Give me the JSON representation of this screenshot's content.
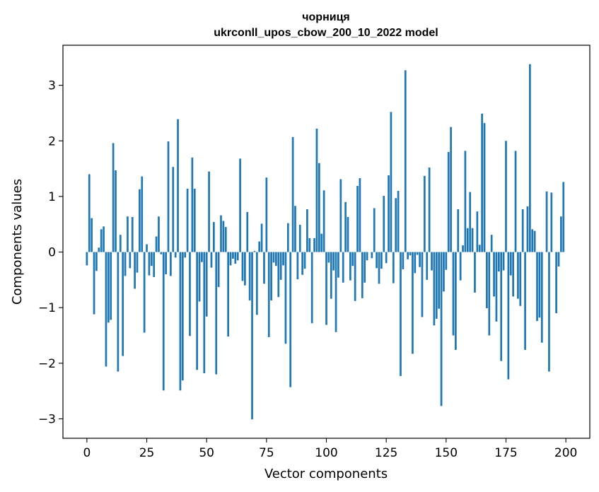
{
  "chart_data": {
    "type": "bar",
    "title_line1": "чорниця",
    "title_line2": "ukrconll_upos_cbow_200_10_2022 model",
    "xlabel": "Vector components",
    "ylabel": "Components values",
    "xlim": [
      -10,
      210
    ],
    "ylim": [
      -3.35,
      3.72
    ],
    "xticks": [
      0,
      25,
      50,
      75,
      100,
      125,
      150,
      175,
      200
    ],
    "yticks": [
      -3,
      -2,
      -1,
      0,
      1,
      2,
      3
    ],
    "ytick_labels": [
      "−3",
      "−2",
      "−1",
      "0",
      "1",
      "2",
      "3"
    ],
    "bar_color": "#1f77b4",
    "grid": false,
    "legend": "none",
    "values": [
      -0.24,
      1.4,
      0.61,
      -1.12,
      -0.34,
      0.08,
      0.41,
      0.46,
      -2.06,
      -1.27,
      -1.22,
      1.96,
      1.47,
      -2.15,
      0.31,
      -1.87,
      -0.43,
      0.64,
      -0.29,
      0.63,
      -0.66,
      -0.37,
      1.13,
      1.36,
      -1.45,
      0.14,
      -0.42,
      -0.25,
      -0.45,
      0.28,
      0.64,
      -0.04,
      -2.49,
      -0.4,
      1.99,
      -0.43,
      1.53,
      -0.1,
      2.39,
      -2.49,
      -2.31,
      -0.1,
      1.14,
      -1.51,
      1.7,
      1.14,
      -2.12,
      -0.89,
      -0.18,
      -2.18,
      -1.16,
      1.45,
      -0.28,
      0.54,
      -2.2,
      -0.63,
      0.66,
      0.56,
      0.45,
      -1.52,
      -0.24,
      -0.12,
      -0.21,
      -0.15,
      1.68,
      -0.52,
      -0.6,
      0.72,
      -0.87,
      -3.01,
      0.02,
      -1.13,
      0.19,
      0.51,
      -0.57,
      1.34,
      -1.53,
      -0.87,
      -0.19,
      -0.25,
      -0.81,
      -0.5,
      -0.24,
      -1.65,
      0.52,
      -2.43,
      2.07,
      0.83,
      -0.49,
      0.49,
      -0.41,
      -0.3,
      0.77,
      0.25,
      -1.28,
      0.25,
      2.22,
      1.6,
      0.33,
      1.11,
      -1.31,
      -0.19,
      -0.84,
      -0.33,
      -1.44,
      -0.46,
      1.31,
      -0.55,
      0.9,
      0.63,
      -0.51,
      -0.25,
      -0.88,
      1.19,
      1.33,
      -0.83,
      -0.55,
      -0.15,
      0.0,
      -0.11,
      0.79,
      -0.29,
      -0.57,
      -0.3,
      1.01,
      -0.2,
      1.38,
      2.52,
      -0.56,
      0.97,
      1.1,
      -2.23,
      -0.31,
      3.27,
      -0.13,
      -0.06,
      -1.83,
      -0.38,
      -0.05,
      -0.27,
      -1.17,
      1.37,
      -0.5,
      1.52,
      -0.33,
      -1.32,
      -1.2,
      -1.02,
      -2.77,
      -0.71,
      -0.32,
      1.8,
      2.25,
      -1.5,
      -1.76,
      0.77,
      -0.51,
      0.12,
      1.82,
      0.43,
      1.08,
      0.43,
      -0.73,
      0.73,
      0.13,
      2.49,
      2.32,
      -1.01,
      -1.5,
      0.31,
      -0.8,
      -1.25,
      -0.35,
      -1.96,
      -0.33,
      2.0,
      -2.29,
      -0.42,
      -0.8,
      1.82,
      -0.84,
      -0.97,
      0.77,
      -1.76,
      0.82,
      3.38,
      0.41,
      0.38,
      -1.24,
      -1.18,
      -1.63,
      0.0,
      1.09,
      -2.15,
      1.07,
      0.0,
      -1.1,
      -0.26,
      0.64,
      1.26
    ]
  }
}
